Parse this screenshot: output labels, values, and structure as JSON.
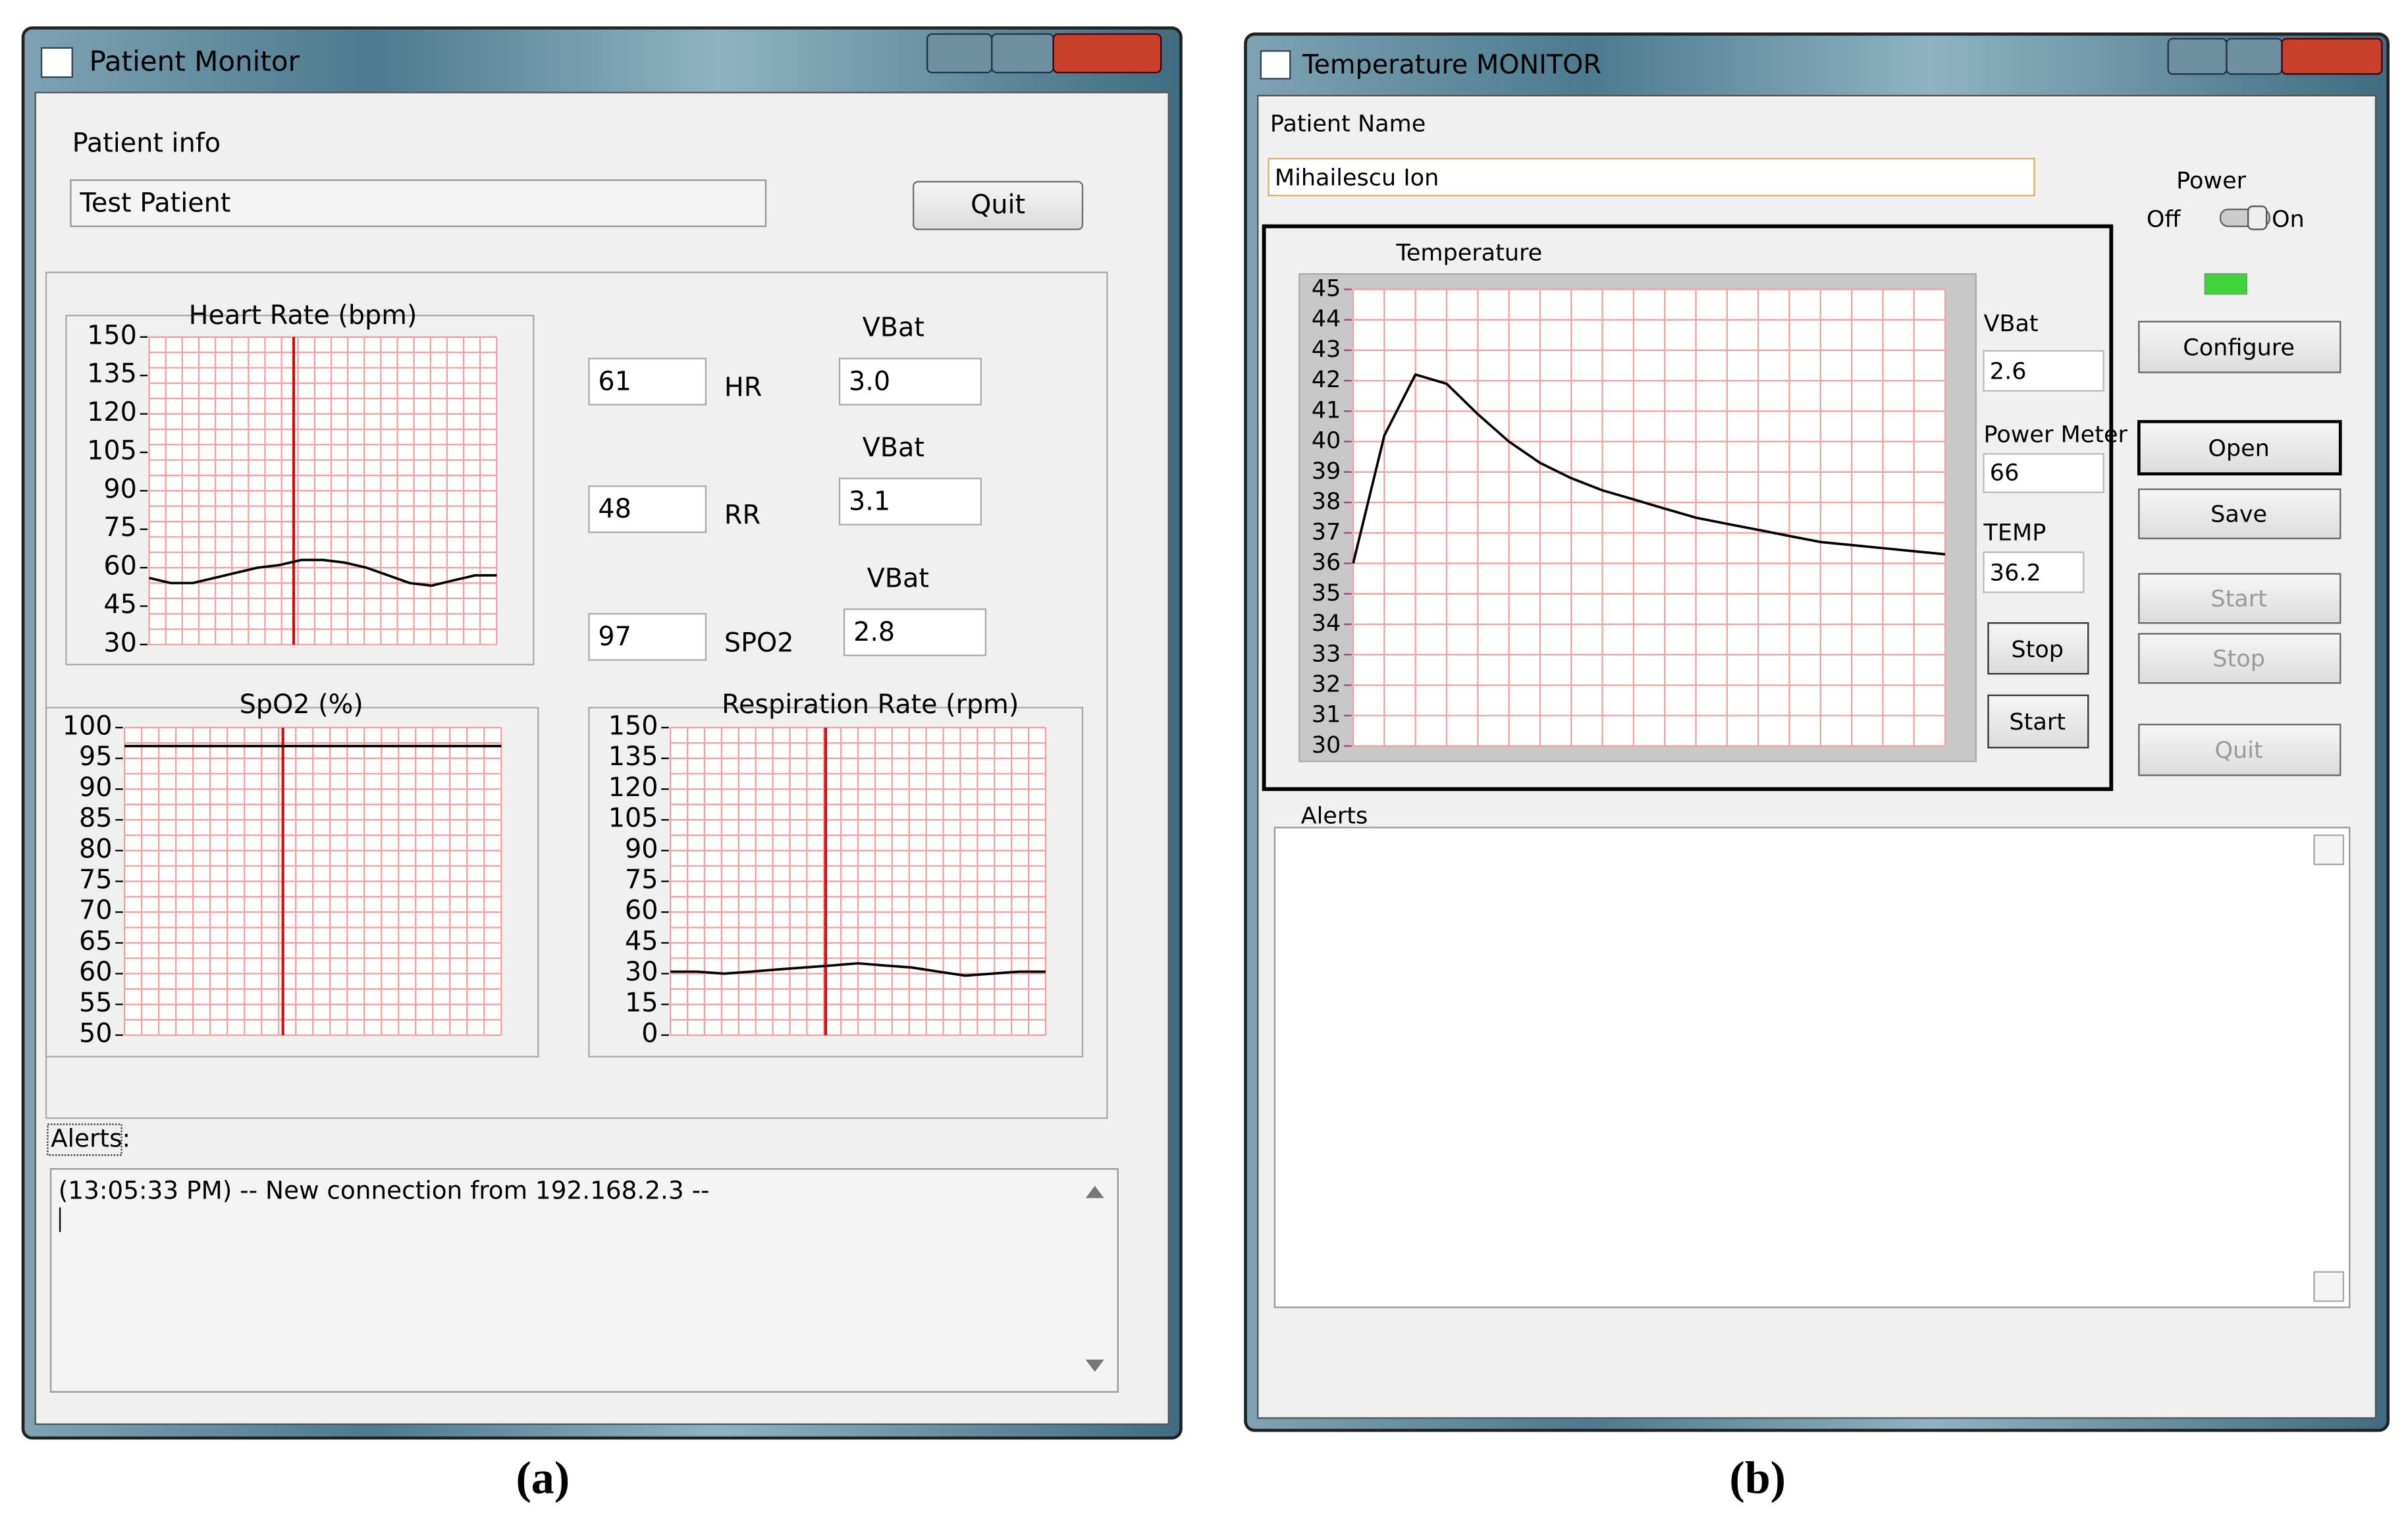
{
  "window_a": {
    "title": "Patient Monitor",
    "patient_info_label": "Patient info",
    "patient_name": "Test Patient",
    "quit_button": "Quit",
    "charts": [
      {
        "type": "line",
        "title": "Heart Rate (bpm)",
        "ylim": [
          30,
          150
        ],
        "yticks": [
          30,
          45,
          60,
          75,
          90,
          105,
          120,
          135,
          150
        ],
        "color": "#000000",
        "grid": true,
        "values": [
          56,
          54,
          54,
          56,
          58,
          60,
          61,
          63,
          63,
          62,
          60,
          57,
          54,
          53,
          55,
          57,
          57
        ]
      },
      {
        "type": "line",
        "title": "SpO2 (%)",
        "ylim": [
          50,
          100
        ],
        "yticks": [
          50,
          55,
          60,
          65,
          70,
          75,
          80,
          85,
          90,
          95,
          100
        ],
        "color": "#000000",
        "grid": true,
        "values": [
          97,
          97,
          97,
          97,
          97,
          97,
          97,
          97,
          97,
          97,
          97,
          97,
          97,
          97,
          97
        ]
      },
      {
        "type": "line",
        "title": "Respiration Rate (rpm)",
        "ylim": [
          0,
          150
        ],
        "yticks": [
          0,
          15,
          30,
          45,
          60,
          75,
          90,
          105,
          120,
          135,
          150
        ],
        "color": "#000000",
        "grid": true,
        "values": [
          31,
          31,
          30,
          31,
          32,
          33,
          34,
          35,
          34,
          33,
          31,
          29,
          30,
          31,
          31
        ]
      }
    ],
    "readings": [
      {
        "value": "61",
        "name": "HR",
        "vbat_label": "VBat",
        "vbat": "3.0"
      },
      {
        "value": "48",
        "name": "RR",
        "vbat_label": "VBat",
        "vbat": "3.1"
      },
      {
        "value": "97",
        "name": "SPO2",
        "vbat_label": "VBat",
        "vbat": "2.8"
      }
    ],
    "alerts_label": "Alerts:",
    "alerts_log": "(13:05:33 PM) -- New connection from 192.168.2.3 --"
  },
  "caption_a": "(a)",
  "window_b": {
    "title": "Temperature MONITOR",
    "patient_name_label": "Patient Name",
    "patient_name": "Mihailescu Ion",
    "chart": {
      "type": "line",
      "title": "Temperature",
      "ylim": [
        30,
        45
      ],
      "yticks": [
        30,
        31,
        32,
        33,
        34,
        35,
        36,
        37,
        38,
        39,
        40,
        41,
        42,
        43,
        44,
        45
      ],
      "tick_color": "#a0408a",
      "color": "#000000",
      "grid": true,
      "values": [
        36.0,
        40.2,
        42.2,
        41.9,
        40.9,
        40.0,
        39.3,
        38.8,
        38.4,
        38.1,
        37.8,
        37.5,
        37.3,
        37.1,
        36.9,
        36.7,
        36.6,
        36.5,
        36.4,
        36.3
      ]
    },
    "vbat_label": "VBat",
    "vbat": "2.6",
    "power_meter_label": "Power Meter",
    "power_meter": "66",
    "temp_label": "TEMP",
    "temp": "36.2",
    "stop_button": "Stop",
    "start_button": "Start",
    "power_label": "Power",
    "off_label": "Off",
    "on_label": "On",
    "buttons": [
      "Configure",
      "Open",
      "Save",
      "Start",
      "Stop",
      "Quit"
    ],
    "alerts_label": "Alerts"
  },
  "caption_b": "(b)"
}
